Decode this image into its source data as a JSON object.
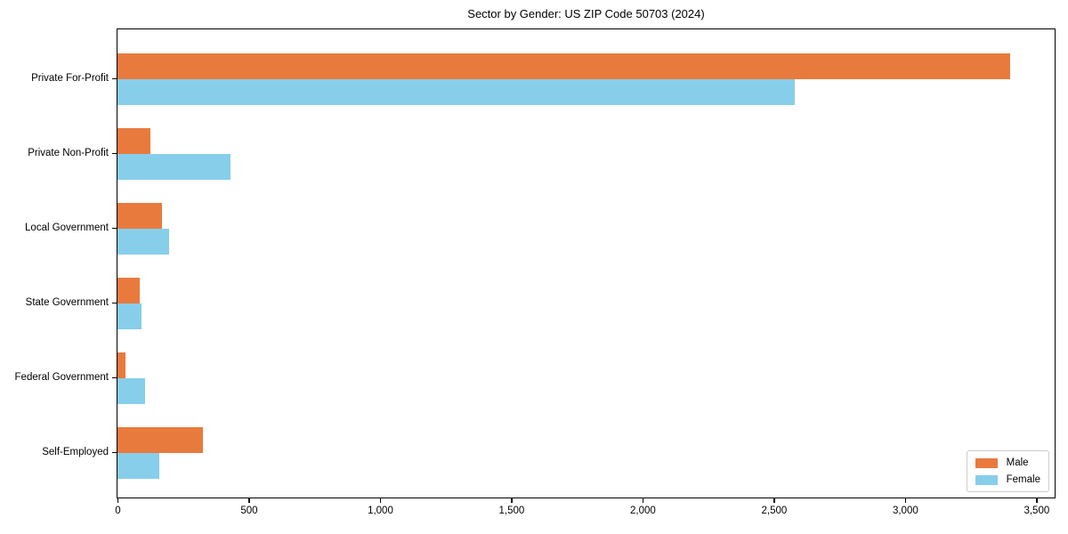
{
  "chart_data": {
    "type": "bar",
    "orientation": "horizontal",
    "title": "Sector by Gender: US ZIP Code 50703 (2024)",
    "xlabel": "",
    "ylabel": "",
    "categories": [
      "Private For-Profit",
      "Private Non-Profit",
      "Local Government",
      "State Government",
      "Federal Government",
      "Self-Employed"
    ],
    "series": [
      {
        "name": "Male",
        "color": "#e87a3e",
        "values": [
          3400,
          125,
          170,
          85,
          30,
          325
        ]
      },
      {
        "name": "Female",
        "color": "#87ceeb",
        "values": [
          2580,
          430,
          195,
          90,
          105,
          160
        ]
      }
    ],
    "xlim": [
      0,
      3570
    ],
    "xticks": {
      "values": [
        0,
        500,
        1000,
        1500,
        2000,
        2500,
        3000,
        3500
      ],
      "labels": [
        "0",
        "500",
        "1,000",
        "1,500",
        "2,000",
        "2,500",
        "3,000",
        "3,500"
      ]
    },
    "grid": false,
    "legend_position": "lower right",
    "background_color": "#ffffff",
    "axis_color": "#000000",
    "legend_border_color": "#cccccc"
  }
}
